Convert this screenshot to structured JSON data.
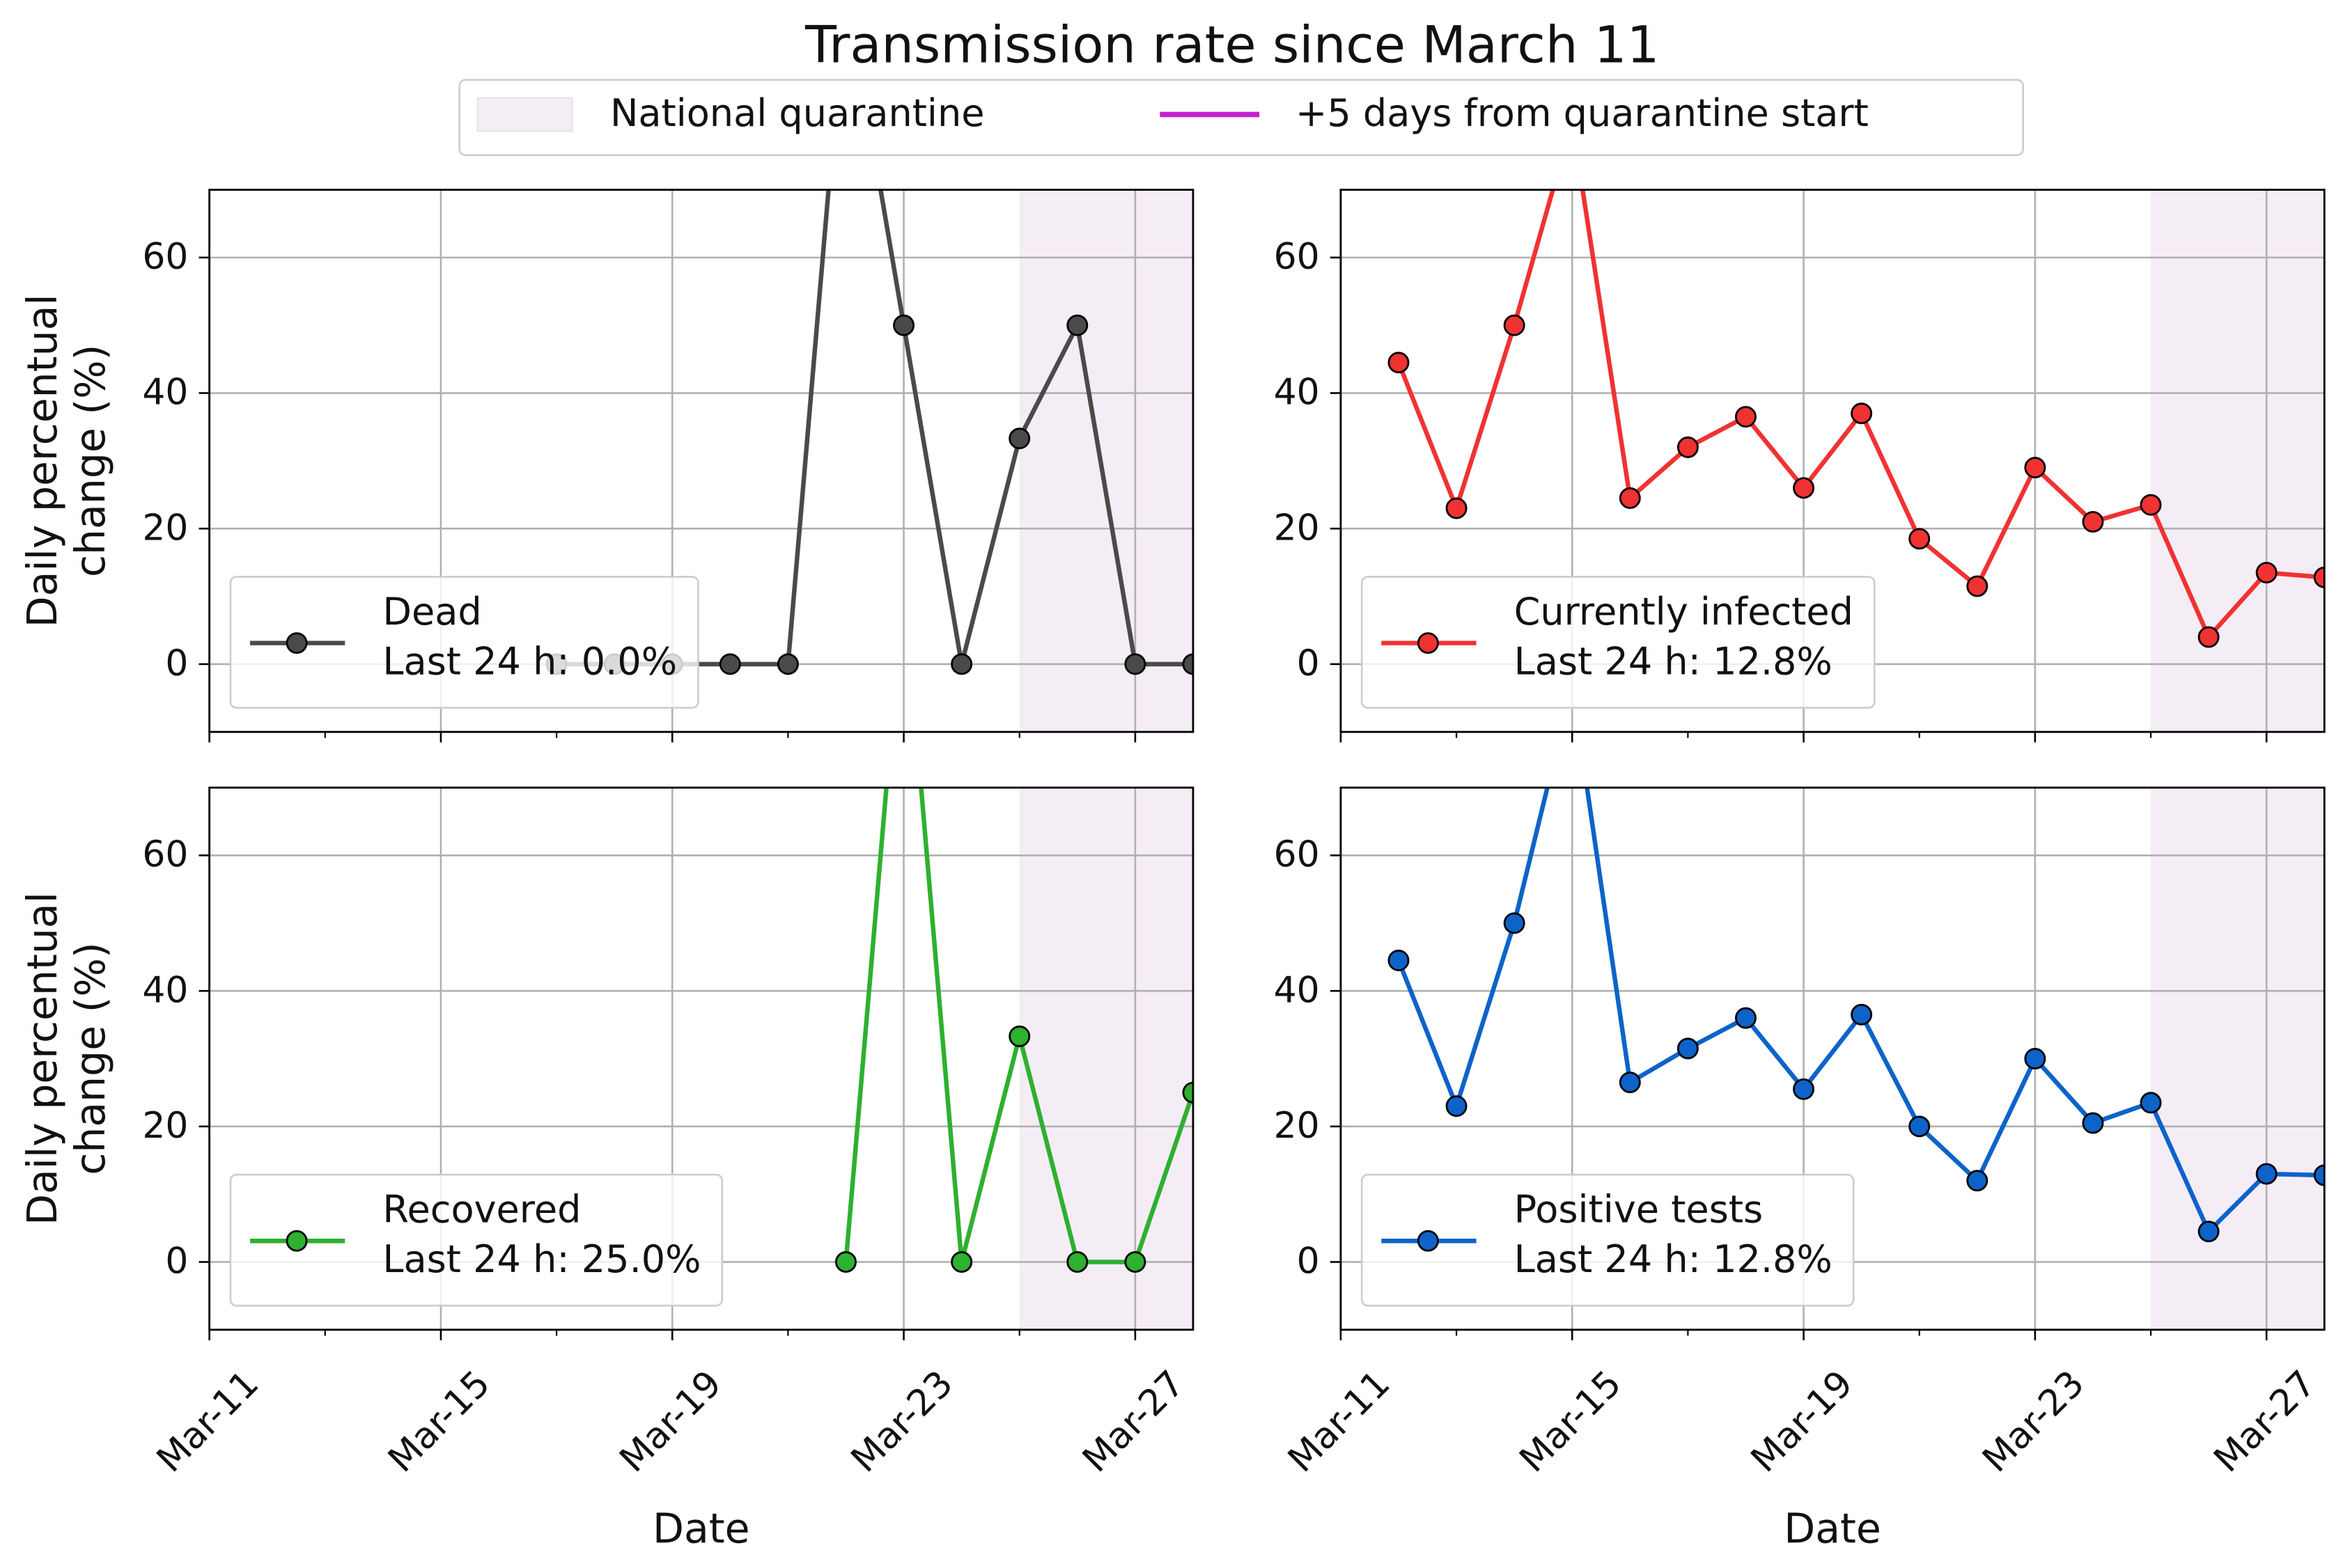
{
  "title": "Transmission rate since March 11",
  "figure_legend": [
    {
      "name": "National quarantine",
      "kind": "patch",
      "color": "#f5edf5"
    },
    {
      "name": "+5 days from quarantine start",
      "kind": "line",
      "color": "#c71fcf"
    }
  ],
  "chart_data": [
    {
      "type": "line",
      "ylabel": [
        "Daily percentual",
        "change (%)"
      ],
      "x": [
        "Mar-12",
        "Mar-13",
        "Mar-14",
        "Mar-15",
        "Mar-16",
        "Mar-17",
        "Mar-18",
        "Mar-19",
        "Mar-20",
        "Mar-21",
        "Mar-22",
        "Mar-23",
        "Mar-24",
        "Mar-25",
        "Mar-26",
        "Mar-27",
        "Mar-28"
      ],
      "series": [
        {
          "name": "Dead",
          "summary": "Last 24 h: 0.0%",
          "color": "#4a4a4a",
          "values": [
            null,
            null,
            null,
            null,
            null,
            0,
            0,
            0,
            0,
            0,
            100,
            50,
            0,
            33.3,
            50,
            0,
            0
          ]
        }
      ],
      "xlim": [
        "Mar-11",
        "Mar-28"
      ],
      "xticks": [
        "Mar-11",
        "Mar-15",
        "Mar-19",
        "Mar-23",
        "Mar-27"
      ],
      "x_minor_ticks": [
        "Mar-13",
        "Mar-17",
        "Mar-21",
        "Mar-25"
      ],
      "ylim": [
        -10,
        70
      ],
      "yticks": [
        0,
        20,
        40,
        60
      ],
      "grid": true,
      "legend": "lower left",
      "shade_span": [
        "Mar-25",
        "Mar-28"
      ]
    },
    {
      "type": "line",
      "x": [
        "Mar-12",
        "Mar-13",
        "Mar-14",
        "Mar-15",
        "Mar-16",
        "Mar-17",
        "Mar-18",
        "Mar-19",
        "Mar-20",
        "Mar-21",
        "Mar-22",
        "Mar-23",
        "Mar-24",
        "Mar-25",
        "Mar-26",
        "Mar-27",
        "Mar-28"
      ],
      "series": [
        {
          "name": "Currently infected",
          "summary": "Last 24 h: 12.8%",
          "color": "#f03232",
          "values": [
            44.5,
            23,
            50,
            80,
            24.5,
            32,
            36.5,
            26,
            37,
            18.5,
            11.5,
            29,
            21,
            23.5,
            4,
            13.5,
            12.8
          ]
        }
      ],
      "xlim": [
        "Mar-11",
        "Mar-28"
      ],
      "xticks": [
        "Mar-11",
        "Mar-15",
        "Mar-19",
        "Mar-23",
        "Mar-27"
      ],
      "x_minor_ticks": [
        "Mar-13",
        "Mar-17",
        "Mar-21",
        "Mar-25"
      ],
      "ylim": [
        -10,
        70
      ],
      "yticks": [
        0,
        20,
        40,
        60
      ],
      "grid": true,
      "legend": "lower left",
      "shade_span": [
        "Mar-25",
        "Mar-28"
      ]
    },
    {
      "type": "line",
      "ylabel": [
        "Daily percentual",
        "change (%)"
      ],
      "xlabel": "Date",
      "x": [
        "Mar-12",
        "Mar-13",
        "Mar-14",
        "Mar-15",
        "Mar-16",
        "Mar-17",
        "Mar-18",
        "Mar-19",
        "Mar-20",
        "Mar-21",
        "Mar-22",
        "Mar-23",
        "Mar-24",
        "Mar-25",
        "Mar-26",
        "Mar-27",
        "Mar-28"
      ],
      "series": [
        {
          "name": "Recovered",
          "summary": "Last 24 h: 25.0%",
          "color": "#2eb030",
          "values": [
            null,
            null,
            null,
            null,
            null,
            null,
            null,
            null,
            null,
            null,
            0,
            100,
            0,
            33.3,
            0,
            0,
            25
          ]
        }
      ],
      "xlim": [
        "Mar-11",
        "Mar-28"
      ],
      "xticks": [
        "Mar-11",
        "Mar-15",
        "Mar-19",
        "Mar-23",
        "Mar-27"
      ],
      "x_minor_ticks": [
        "Mar-13",
        "Mar-17",
        "Mar-21",
        "Mar-25"
      ],
      "ylim": [
        -10,
        70
      ],
      "yticks": [
        0,
        20,
        40,
        60
      ],
      "grid": true,
      "legend": "lower left",
      "shade_span": [
        "Mar-25",
        "Mar-28"
      ]
    },
    {
      "type": "line",
      "xlabel": "Date",
      "x": [
        "Mar-12",
        "Mar-13",
        "Mar-14",
        "Mar-15",
        "Mar-16",
        "Mar-17",
        "Mar-18",
        "Mar-19",
        "Mar-20",
        "Mar-21",
        "Mar-22",
        "Mar-23",
        "Mar-24",
        "Mar-25",
        "Mar-26",
        "Mar-27",
        "Mar-28"
      ],
      "series": [
        {
          "name": "Positive tests",
          "summary": "Last 24 h: 12.8%",
          "color": "#0d63c9",
          "values": [
            44.5,
            23,
            50,
            85,
            26.5,
            31.5,
            36,
            25.5,
            36.5,
            20,
            12,
            30,
            20.5,
            23.5,
            4.5,
            13,
            12.8
          ]
        }
      ],
      "xlim": [
        "Mar-11",
        "Mar-28"
      ],
      "xticks": [
        "Mar-11",
        "Mar-15",
        "Mar-19",
        "Mar-23",
        "Mar-27"
      ],
      "x_minor_ticks": [
        "Mar-13",
        "Mar-17",
        "Mar-21",
        "Mar-25"
      ],
      "ylim": [
        -10,
        70
      ],
      "yticks": [
        0,
        20,
        40,
        60
      ],
      "grid": true,
      "legend": "lower left",
      "shade_span": [
        "Mar-25",
        "Mar-28"
      ]
    }
  ]
}
